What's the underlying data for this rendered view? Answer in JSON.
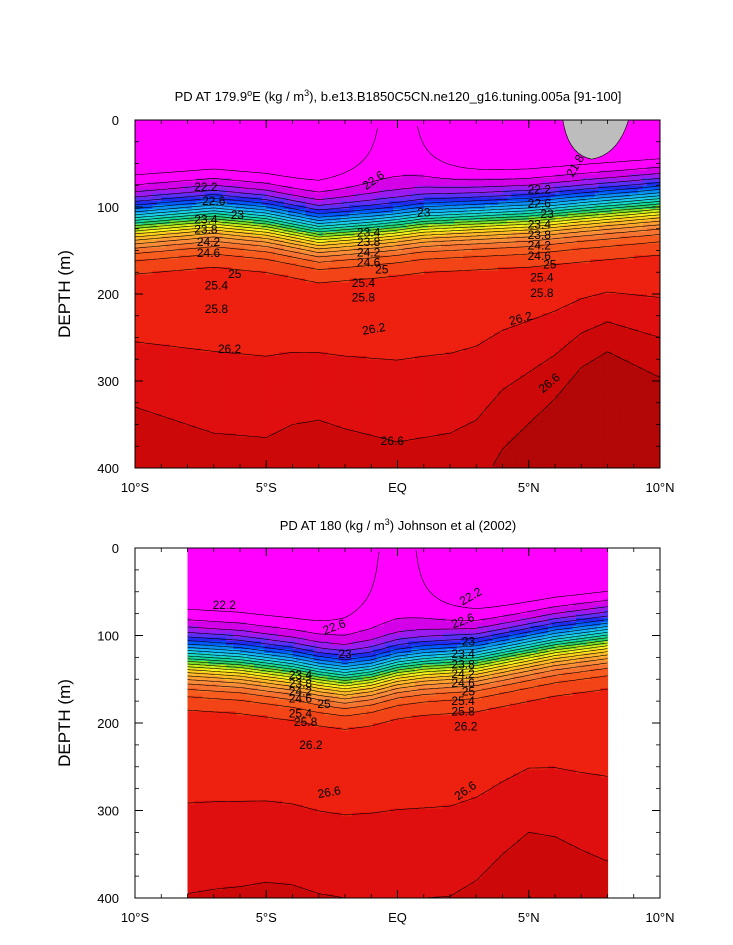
{
  "chart_data": [
    {
      "type": "heatmap",
      "title": "PD AT 179.9°E (kg / m³), b.e13.B1850C5CN.ne120_g16.tuning.005a [91-100]",
      "title_parts": {
        "pre": "PD AT 179.9",
        "deg": "o",
        "mid": "E (kg / m",
        "sup": "3",
        "post": "), b.e13.B1850C5CN.ne120_g16.tuning.005a [91-100]"
      },
      "ylabel": "DEPTH (m)",
      "xlim": [
        -10,
        10
      ],
      "ylim": [
        400,
        0
      ],
      "x_ticks": [
        {
          "value": -10,
          "label": "10°S"
        },
        {
          "value": -5,
          "label": "5°S"
        },
        {
          "value": 0,
          "label": "EQ"
        },
        {
          "value": 5,
          "label": "5°N"
        },
        {
          "value": 10,
          "label": "10°N"
        }
      ],
      "y_ticks": [
        0,
        100,
        200,
        300,
        400
      ],
      "data_extent": [
        -10,
        10
      ],
      "thermocline": {
        "x": [
          -10,
          -7,
          -5,
          -3,
          -1,
          0,
          1,
          3,
          5,
          7,
          10
        ],
        "depth": [
          120,
          112,
          118,
          130,
          125,
          122,
          118,
          115,
          112,
          106,
          98
        ]
      },
      "deep_isopycnal_26_6": {
        "x": [
          -10,
          -7,
          -5,
          -4,
          -3,
          -2,
          0,
          2,
          3,
          4,
          5,
          6,
          7,
          8,
          10
        ],
        "depth": [
          330,
          360,
          365,
          350,
          345,
          355,
          370,
          360,
          345,
          310,
          290,
          270,
          245,
          232,
          250
        ]
      },
      "contour_labels": [
        {
          "text": "22.6",
          "x": -0.9,
          "y": 70,
          "rot": -35
        },
        {
          "text": "22.2",
          "x": -7.3,
          "y": 78,
          "rot": 0
        },
        {
          "text": "22.6",
          "x": -7.0,
          "y": 94,
          "rot": 0
        },
        {
          "text": "23",
          "x": -6.1,
          "y": 110,
          "rot": 0
        },
        {
          "text": "23.4",
          "x": -7.3,
          "y": 115,
          "rot": 0
        },
        {
          "text": "23.8",
          "x": -7.3,
          "y": 127,
          "rot": 0
        },
        {
          "text": "24.2",
          "x": -7.2,
          "y": 141,
          "rot": 0
        },
        {
          "text": "24.6",
          "x": -7.2,
          "y": 154,
          "rot": 0
        },
        {
          "text": "25",
          "x": -6.2,
          "y": 178,
          "rot": 0
        },
        {
          "text": "25.4",
          "x": -6.9,
          "y": 191,
          "rot": 0
        },
        {
          "text": "25.8",
          "x": -6.9,
          "y": 218,
          "rot": 0
        },
        {
          "text": "26.2",
          "x": -6.4,
          "y": 264,
          "rot": 0
        },
        {
          "text": "23",
          "x": 1.0,
          "y": 107,
          "rot": 0
        },
        {
          "text": "23.4",
          "x": -1.1,
          "y": 130,
          "rot": 0
        },
        {
          "text": "23.8",
          "x": -1.1,
          "y": 141,
          "rot": 0
        },
        {
          "text": "24.2",
          "x": -1.1,
          "y": 153,
          "rot": 0
        },
        {
          "text": "24.6",
          "x": -1.1,
          "y": 165,
          "rot": 0
        },
        {
          "text": "25",
          "x": -0.6,
          "y": 173,
          "rot": 0
        },
        {
          "text": "25.4",
          "x": -1.3,
          "y": 188,
          "rot": 0
        },
        {
          "text": "25.8",
          "x": -1.3,
          "y": 205,
          "rot": 0
        },
        {
          "text": "26.2",
          "x": -0.9,
          "y": 241,
          "rot": -10
        },
        {
          "text": "26.6",
          "x": -0.2,
          "y": 370,
          "rot": 0
        },
        {
          "text": "21.8",
          "x": 6.8,
          "y": 53,
          "rot": -60
        },
        {
          "text": "22.2",
          "x": 5.4,
          "y": 81,
          "rot": 0
        },
        {
          "text": "22.6",
          "x": 5.4,
          "y": 97,
          "rot": 0
        },
        {
          "text": "23",
          "x": 5.7,
          "y": 109,
          "rot": 0
        },
        {
          "text": "23.4",
          "x": 5.4,
          "y": 121,
          "rot": 0
        },
        {
          "text": "23.8",
          "x": 5.4,
          "y": 133,
          "rot": 0
        },
        {
          "text": "24.2",
          "x": 5.4,
          "y": 145,
          "rot": 0
        },
        {
          "text": "24.6",
          "x": 5.4,
          "y": 157,
          "rot": 0
        },
        {
          "text": "25",
          "x": 5.8,
          "y": 167,
          "rot": 0
        },
        {
          "text": "25.4",
          "x": 5.5,
          "y": 182,
          "rot": 0
        },
        {
          "text": "25.8",
          "x": 5.5,
          "y": 200,
          "rot": 0
        },
        {
          "text": "26.2",
          "x": 4.7,
          "y": 229,
          "rot": -15
        },
        {
          "text": "26.6",
          "x": 5.8,
          "y": 303,
          "rot": -40
        }
      ]
    },
    {
      "type": "heatmap",
      "title": "PD AT 180 (kg / m³) Johnson et al (2002)",
      "title_parts": {
        "pre": "PD AT 180 (kg / m",
        "deg": "",
        "mid": "",
        "sup": "3",
        "post": ") Johnson et al (2002)"
      },
      "ylabel": "DEPTH (m)",
      "xlim": [
        -10,
        10
      ],
      "ylim": [
        400,
        0
      ],
      "x_ticks": [
        {
          "value": -10,
          "label": "10°S"
        },
        {
          "value": -5,
          "label": "5°S"
        },
        {
          "value": 0,
          "label": "EQ"
        },
        {
          "value": 5,
          "label": "5°N"
        },
        {
          "value": 10,
          "label": "10°N"
        }
      ],
      "y_ticks": [
        0,
        100,
        200,
        300,
        400
      ],
      "data_extent": [
        -8,
        8
      ],
      "thermocline": {
        "x": [
          -8,
          -6,
          -4,
          -3,
          -2,
          -1,
          0,
          1,
          2,
          3,
          4,
          5,
          6,
          8
        ],
        "depth": [
          128,
          132,
          140,
          146,
          150,
          146,
          138,
          134,
          132,
          130,
          124,
          118,
          112,
          104
        ]
      },
      "deep_isopycnal_26_6": {
        "x": [
          -8,
          -7,
          -6,
          -5,
          -4,
          -3,
          -2,
          -1,
          0,
          1,
          2,
          3,
          4,
          5,
          6,
          7,
          8
        ],
        "depth": [
          395,
          390,
          387,
          382,
          385,
          395,
          400,
          400,
          400,
          400,
          398,
          380,
          350,
          325,
          330,
          345,
          358
        ]
      },
      "contour_labels": [
        {
          "text": "22.2",
          "x": -6.6,
          "y": 66,
          "rot": 0
        },
        {
          "text": "22.6",
          "x": -2.4,
          "y": 91,
          "rot": -20
        },
        {
          "text": "23",
          "x": -2.0,
          "y": 122,
          "rot": 0
        },
        {
          "text": "23.4",
          "x": -3.7,
          "y": 146,
          "rot": 0
        },
        {
          "text": "23.8",
          "x": -3.7,
          "y": 156,
          "rot": 0
        },
        {
          "text": "24.2",
          "x": -3.7,
          "y": 165,
          "rot": 0
        },
        {
          "text": "24.6",
          "x": -3.7,
          "y": 173,
          "rot": 0
        },
        {
          "text": "25",
          "x": -2.8,
          "y": 179,
          "rot": 0
        },
        {
          "text": "25.4",
          "x": -3.7,
          "y": 190,
          "rot": 0
        },
        {
          "text": "25.8",
          "x": -3.5,
          "y": 200,
          "rot": 0
        },
        {
          "text": "26.2",
          "x": -3.3,
          "y": 226,
          "rot": 0
        },
        {
          "text": "26.6",
          "x": -2.6,
          "y": 280,
          "rot": -10
        },
        {
          "text": "22.2",
          "x": 2.8,
          "y": 56,
          "rot": -30
        },
        {
          "text": "22.6",
          "x": 2.5,
          "y": 84,
          "rot": -20
        },
        {
          "text": "23",
          "x": 2.7,
          "y": 108,
          "rot": 0
        },
        {
          "text": "23.4",
          "x": 2.5,
          "y": 122,
          "rot": 0
        },
        {
          "text": "23.8",
          "x": 2.5,
          "y": 134,
          "rot": 0
        },
        {
          "text": "24.2",
          "x": 2.5,
          "y": 145,
          "rot": 0
        },
        {
          "text": "24.6",
          "x": 2.5,
          "y": 155,
          "rot": 0
        },
        {
          "text": "25",
          "x": 2.7,
          "y": 165,
          "rot": 0
        },
        {
          "text": "25.4",
          "x": 2.5,
          "y": 176,
          "rot": 0
        },
        {
          "text": "25.8",
          "x": 2.5,
          "y": 188,
          "rot": 0
        },
        {
          "text": "26.2",
          "x": 2.6,
          "y": 205,
          "rot": 0
        },
        {
          "text": "26.6",
          "x": 2.6,
          "y": 278,
          "rot": -35
        }
      ]
    }
  ],
  "colorscale": {
    "levels": [
      21.8,
      22.0,
      22.2,
      22.4,
      22.6,
      22.8,
      23.0,
      23.2,
      23.4,
      23.6,
      23.8,
      24.0,
      24.2,
      24.4,
      24.6,
      24.8,
      25.0,
      25.2,
      25.4,
      25.6,
      25.8,
      26.0,
      26.2,
      26.4,
      26.6,
      26.8
    ],
    "colors": [
      "#ff00ff",
      "#d400e8",
      "#9a1bf0",
      "#5b2ff5",
      "#1f2cf0",
      "#0058ff",
      "#0a8ef5",
      "#13b4f5",
      "#1acde8",
      "#18d8c6",
      "#14d79a",
      "#2ad266",
      "#78de28",
      "#c8ec1a",
      "#f7f01c",
      "#ffd21e",
      "#ffb829",
      "#fd9e31",
      "#f98a3a",
      "#f67230",
      "#f75b1e",
      "#f24416",
      "#ee2010",
      "#e00f0f",
      "#cc0808",
      "#b30606"
    ],
    "missing_color": "#bdbdbd"
  }
}
